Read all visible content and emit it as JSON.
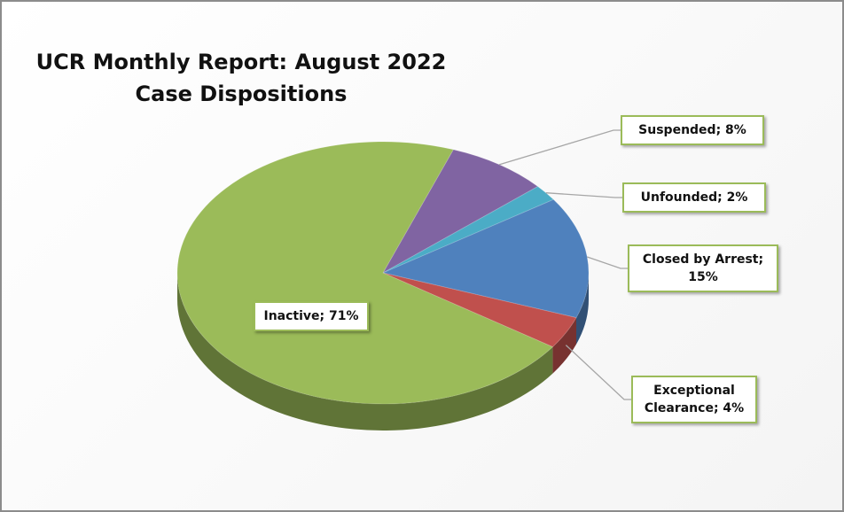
{
  "chart_data": {
    "type": "pie",
    "title": "UCR Monthly Report: August 2022",
    "subtitle": "Case Dispositions",
    "categories": [
      "Suspended",
      "Unfounded",
      "Closed by Arrest",
      "Exceptional Clearance",
      "Inactive"
    ],
    "values": [
      8,
      2,
      15,
      4,
      71
    ],
    "value_labels": [
      "Suspended; 8%",
      "Unfounded; 2%",
      "Closed by Arrest; 15%",
      "Exceptional Clearance; 4%",
      "Inactive; 71%"
    ],
    "colors": [
      "#8064a2",
      "#4bacc6",
      "#4f81bd",
      "#c0504d",
      "#9bbb59"
    ]
  }
}
